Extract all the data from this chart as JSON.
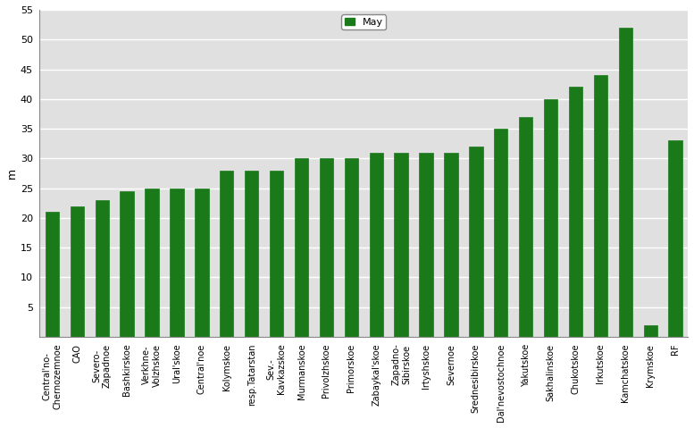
{
  "categories": [
    "Central'no-\nChernozemnoe",
    "CAO",
    "Severo-\nZapadnoe",
    "Bashkirskoe",
    "Verkhne-\nVolzhskoe",
    "Ural'skoe",
    "Central'noe",
    "Kolymskoe",
    "resp.Tatarstan",
    "Sev.-\nKavkazskoe",
    "Murmanskoe",
    "Privolzhskoe",
    "Primorskoe",
    "Zabaykal'skoe",
    "Zapadno-\nSibirskoe",
    "Irtyshskoe",
    "Severnoe",
    "Srednesibirskoe",
    "Dal'nevostochnoe",
    "Yakutskoe",
    "Sakhalinskoe",
    "Chukotskoe",
    "Irkutskoe",
    "Kamchatskoe",
    "Krymskoe",
    "RF"
  ],
  "values": [
    21,
    22,
    23,
    24.5,
    25,
    25,
    25,
    28,
    28,
    28,
    30,
    30,
    30,
    31,
    31,
    31,
    31,
    32,
    35,
    37,
    40,
    42,
    44,
    52,
    2,
    33
  ],
  "bar_color": "#1a7a1a",
  "ylabel": "m",
  "ylim": [
    0,
    55
  ],
  "yticks": [
    5,
    10,
    15,
    20,
    25,
    30,
    35,
    40,
    45,
    50,
    55
  ],
  "legend_label": "May",
  "background_color": "#e0e0e0",
  "figure_background": "#ffffff",
  "grid_color": "#ffffff",
  "bar_width": 0.55
}
